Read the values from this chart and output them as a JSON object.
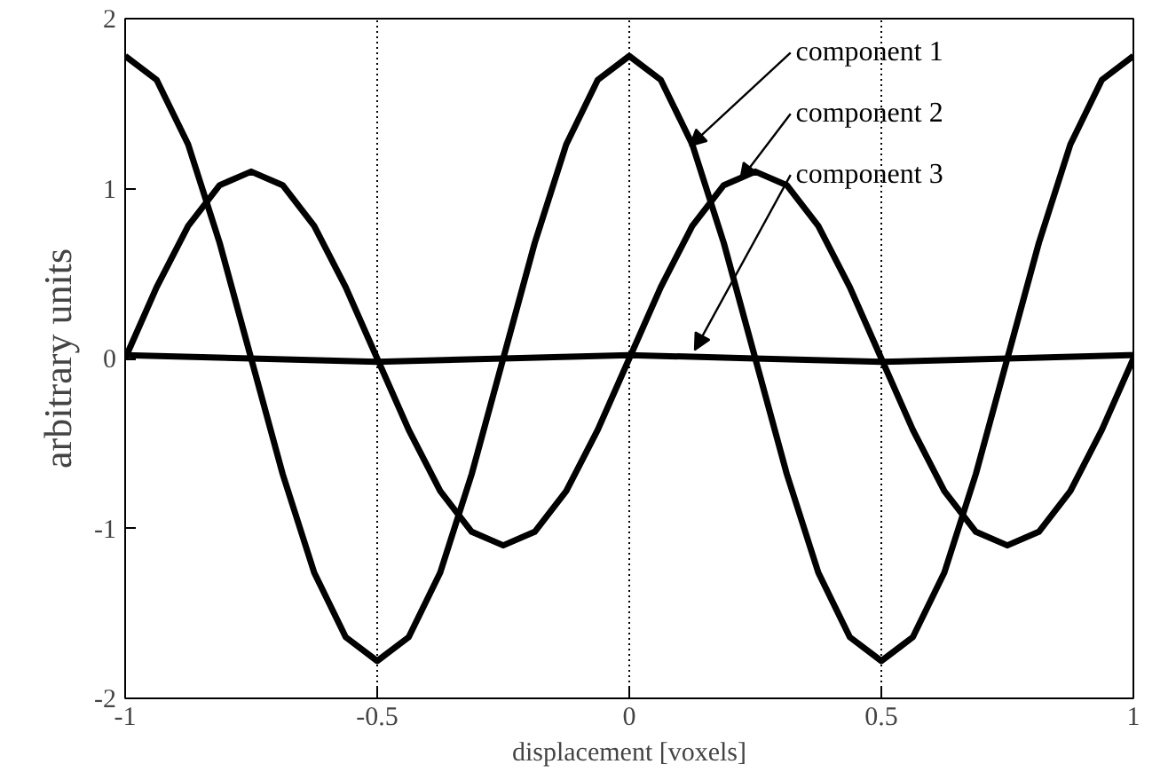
{
  "chart_data": {
    "type": "line",
    "xlabel": "displacement [voxels]",
    "ylabel": "arbitrary units",
    "x": [
      -1,
      -0.9375,
      -0.875,
      -0.8125,
      -0.75,
      -0.6875,
      -0.625,
      -0.5625,
      -0.5,
      -0.4375,
      -0.375,
      -0.3125,
      -0.25,
      -0.1875,
      -0.125,
      -0.0625,
      0,
      0.0625,
      0.125,
      0.1875,
      0.25,
      0.3125,
      0.375,
      0.4375,
      0.5,
      0.5625,
      0.625,
      0.6875,
      0.75,
      0.8125,
      0.875,
      0.9375,
      1
    ],
    "series": [
      {
        "color": "#000000",
        "values": [
          1.78,
          1.64,
          1.26,
          0.68,
          0,
          -0.68,
          -1.26,
          -1.64,
          -1.78,
          -1.64,
          -1.26,
          -0.68,
          0,
          0.68,
          1.26,
          1.64,
          1.78,
          1.64,
          1.26,
          0.68,
          0,
          -0.68,
          -1.26,
          -1.64,
          -1.78,
          -1.64,
          -1.26,
          -0.68,
          0,
          0.68,
          1.26,
          1.64,
          1.78
        ]
      },
      {
        "color": "#000000",
        "values": [
          0,
          0.42,
          0.78,
          1.02,
          1.1,
          1.02,
          0.78,
          0.42,
          0,
          -0.42,
          -0.78,
          -1.02,
          -1.1,
          -1.02,
          -0.78,
          -0.42,
          0,
          0.42,
          0.78,
          1.02,
          1.1,
          1.02,
          0.78,
          0.42,
          0,
          -0.42,
          -0.78,
          -1.02,
          -1.1,
          -1.02,
          -0.78,
          -0.42,
          0
        ]
      },
      {
        "color": "#000000",
        "x": [
          -1,
          -0.75,
          -0.5,
          -0.25,
          0,
          0.25,
          0.5,
          0.75,
          1
        ],
        "values": [
          0.02,
          0,
          -0.02,
          0,
          0.02,
          0,
          -0.02,
          0,
          0.02
        ]
      }
    ],
    "annotations": [
      {
        "text": "component 1",
        "x": 0.12,
        "y": 1.25
      },
      {
        "text": "component 2",
        "x": 0.22,
        "y": 1.05
      },
      {
        "text": "component 3",
        "x": 0.13,
        "y": 0.05
      }
    ],
    "xlim": [
      -1,
      1
    ],
    "ylim": [
      -2,
      2
    ],
    "xticks": [
      -1,
      -0.5,
      0,
      0.5,
      1
    ],
    "yticks": [
      -2,
      -1,
      0,
      1,
      2
    ],
    "grid": "x",
    "line_style": "solid",
    "marker": "none"
  }
}
